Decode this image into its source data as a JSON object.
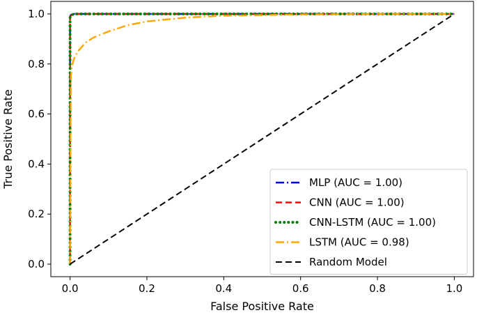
{
  "chart_data": {
    "type": "line",
    "title": "",
    "xlabel": "False Positive Rate",
    "ylabel": "True Positive Rate",
    "xlim": [
      -0.05,
      1.05
    ],
    "ylim": [
      -0.05,
      1.05
    ],
    "xticks": [
      "0.0",
      "0.2",
      "0.4",
      "0.6",
      "0.8",
      "1.0"
    ],
    "yticks": [
      "0.0",
      "0.2",
      "0.4",
      "0.6",
      "0.8",
      "1.0"
    ],
    "grid": false,
    "legend_position": "lower-right",
    "series": [
      {
        "name": "MLP (AUC = 1.00)",
        "color": "#0000ff",
        "style": "dashdot",
        "x": [
          0,
          0,
          0.002,
          0.01,
          1
        ],
        "y": [
          0,
          0.99,
          0.996,
          1,
          1
        ]
      },
      {
        "name": "CNN (AUC = 1.00)",
        "color": "#ff0000",
        "style": "dashed",
        "x": [
          0,
          0,
          0.003,
          0.01,
          1
        ],
        "y": [
          0,
          0.985,
          0.995,
          1,
          1
        ]
      },
      {
        "name": "CNN-LSTM (AUC = 1.00)",
        "color": "#008000",
        "style": "dotted",
        "x": [
          0,
          0,
          0.003,
          0.01,
          1
        ],
        "y": [
          0,
          0.985,
          0.995,
          1,
          1
        ]
      },
      {
        "name": "LSTM (AUC = 0.98)",
        "color": "#ffa500",
        "style": "dashdot",
        "x": [
          0,
          0.002,
          0.005,
          0.01,
          0.02,
          0.04,
          0.06,
          0.1,
          0.15,
          0.2,
          0.3,
          0.4,
          0.6,
          0.8,
          1
        ],
        "y": [
          0,
          0.75,
          0.79,
          0.82,
          0.85,
          0.885,
          0.905,
          0.93,
          0.955,
          0.97,
          0.985,
          0.993,
          0.998,
          1,
          1
        ]
      },
      {
        "name": "Random Model",
        "color": "#000000",
        "style": "dashed",
        "x": [
          0,
          1
        ],
        "y": [
          0,
          1
        ]
      }
    ]
  }
}
